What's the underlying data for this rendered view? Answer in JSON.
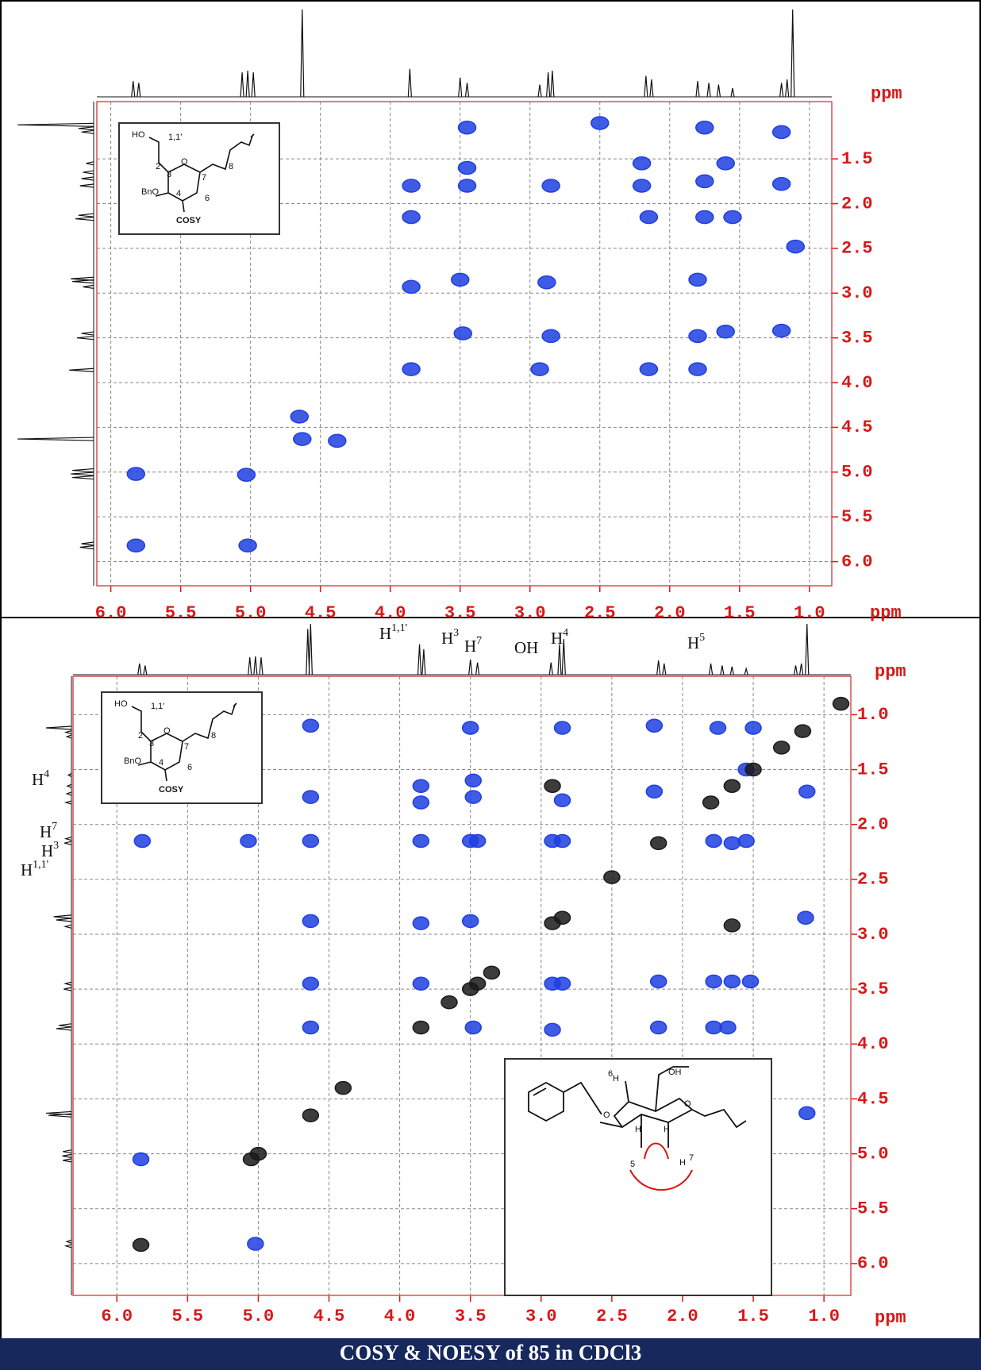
{
  "chart_data": [
    {
      "type": "scatter",
      "x_label": "ppm",
      "y_label": "ppm",
      "grid": true,
      "xlim": [
        6.1,
        0.84
      ],
      "ylim": [
        6.27,
        0.86
      ],
      "xticks": [
        {
          "value": 6.0,
          "label": "6.0"
        },
        {
          "value": 5.5,
          "label": "5.5"
        },
        {
          "value": 5.0,
          "label": "5.0"
        },
        {
          "value": 4.5,
          "label": "4.5"
        },
        {
          "value": 4.0,
          "label": "4.0"
        },
        {
          "value": 3.5,
          "label": "3.5"
        },
        {
          "value": 3.0,
          "label": "3.0"
        },
        {
          "value": 2.5,
          "label": "2.5"
        },
        {
          "value": 2.0,
          "label": "2.0"
        },
        {
          "value": 1.5,
          "label": "1.5"
        },
        {
          "value": 1.0,
          "label": "1.0"
        }
      ],
      "yticks": [
        {
          "value": 1.5,
          "label": "1.5"
        },
        {
          "value": 2.0,
          "label": "2.0"
        },
        {
          "value": 2.5,
          "label": "2.5"
        },
        {
          "value": 3.0,
          "label": "3.0"
        },
        {
          "value": 3.5,
          "label": "3.5"
        },
        {
          "value": 4.0,
          "label": "4.0"
        },
        {
          "value": 4.5,
          "label": "4.5"
        },
        {
          "value": 5.0,
          "label": "5.0"
        },
        {
          "value": 5.5,
          "label": "5.5"
        },
        {
          "value": 6.0,
          "label": "6.0"
        }
      ],
      "series": [
        {
          "color": "#1f3fe0",
          "x": [
            3.45,
            2.5,
            1.75,
            1.2,
            3.45,
            1.6,
            1.75,
            1.2,
            3.85,
            3.45,
            2.85,
            2.2,
            2.2,
            3.85,
            2.15,
            1.75,
            1.55,
            3.85,
            3.5,
            2.88,
            1.8,
            3.48,
            2.85,
            1.8,
            1.6,
            1.2,
            3.85,
            2.93,
            2.15,
            1.8,
            4.63,
            4.65,
            4.38,
            5.82,
            5.03,
            5.82,
            5.02,
            1.1
          ],
          "values": [
            1.15,
            1.1,
            1.15,
            1.2,
            1.6,
            1.55,
            1.75,
            1.78,
            1.8,
            1.8,
            1.8,
            1.8,
            1.55,
            2.15,
            2.15,
            2.15,
            2.15,
            2.93,
            2.85,
            2.88,
            2.85,
            3.45,
            3.48,
            3.48,
            3.43,
            3.42,
            3.85,
            3.85,
            3.85,
            3.85,
            4.63,
            4.38,
            4.65,
            5.02,
            5.03,
            5.82,
            5.82,
            2.48
          ]
        }
      ],
      "projection": {
        "x": [
          5.84,
          5.8,
          5.06,
          5.02,
          4.98,
          4.63,
          3.86,
          3.5,
          3.45,
          2.93,
          2.87,
          2.84,
          2.17,
          2.13,
          1.8,
          1.72,
          1.65,
          1.55,
          1.2,
          1.16,
          1.12
        ],
        "values": [
          18,
          16,
          28,
          30,
          28,
          100,
          32,
          22,
          16,
          14,
          28,
          30,
          24,
          20,
          18,
          16,
          14,
          10,
          16,
          20,
          100
        ]
      },
      "inset": {
        "labels": [
          "HO",
          "1,1'",
          "2",
          "3",
          "O",
          "7",
          "8",
          "BnO",
          "4",
          "6",
          "COSY"
        ]
      }
    },
    {
      "type": "scatter",
      "x_label": "ppm",
      "y_label": "ppm",
      "grid": true,
      "xlim": [
        6.31,
        0.81
      ],
      "ylim": [
        6.29,
        0.65
      ],
      "xticks": [
        {
          "value": 6.0,
          "label": "6.0"
        },
        {
          "value": 5.5,
          "label": "5.5"
        },
        {
          "value": 5.0,
          "label": "5.0"
        },
        {
          "value": 4.5,
          "label": "4.5"
        },
        {
          "value": 4.0,
          "label": "4.0"
        },
        {
          "value": 3.5,
          "label": "3.5"
        },
        {
          "value": 3.0,
          "label": "3.0"
        },
        {
          "value": 2.5,
          "label": "2.5"
        },
        {
          "value": 2.0,
          "label": "2.0"
        },
        {
          "value": 1.5,
          "label": "1.5"
        },
        {
          "value": 1.0,
          "label": "1.0"
        }
      ],
      "yticks": [
        {
          "value": 1.0,
          "label": "1.0"
        },
        {
          "value": 1.5,
          "label": "1.5"
        },
        {
          "value": 2.0,
          "label": "2.0"
        },
        {
          "value": 2.5,
          "label": "2.5"
        },
        {
          "value": 3.0,
          "label": "3.0"
        },
        {
          "value": 3.5,
          "label": "3.5"
        },
        {
          "value": 4.0,
          "label": "4.0"
        },
        {
          "value": 4.5,
          "label": "4.5"
        },
        {
          "value": 5.0,
          "label": "5.0"
        },
        {
          "value": 5.5,
          "label": "5.5"
        },
        {
          "value": 6.0,
          "label": "6.0"
        }
      ],
      "series": [
        {
          "color": "#1f3fe0",
          "x": [
            4.63,
            3.5,
            2.85,
            2.2,
            1.75,
            1.5,
            3.48,
            4.63,
            3.85,
            3.85,
            3.48,
            2.85,
            2.2,
            1.55,
            1.12,
            5.82,
            5.07,
            4.63,
            3.85,
            3.5,
            3.45,
            2.92,
            2.85,
            1.78,
            1.65,
            1.55,
            4.63,
            3.85,
            3.5,
            1.13,
            4.63,
            3.85,
            2.92,
            2.85,
            2.17,
            1.78,
            1.65,
            1.52,
            4.63,
            3.48,
            2.92,
            2.17,
            1.78,
            1.68,
            2.85,
            2.17,
            1.78,
            1.12,
            5.83,
            5.02
          ],
          "values": [
            1.1,
            1.12,
            1.12,
            1.1,
            1.12,
            1.12,
            1.6,
            1.75,
            1.65,
            1.8,
            1.75,
            1.78,
            1.7,
            1.5,
            1.7,
            2.15,
            2.15,
            2.15,
            2.15,
            2.15,
            2.15,
            2.15,
            2.15,
            2.15,
            2.17,
            2.15,
            2.88,
            2.9,
            2.88,
            2.85,
            3.45,
            3.45,
            3.45,
            3.45,
            3.43,
            3.43,
            3.43,
            3.43,
            3.85,
            3.85,
            3.87,
            3.85,
            3.85,
            3.85,
            4.63,
            4.63,
            4.63,
            4.63,
            5.05,
            5.82
          ]
        },
        {
          "color": "#1a1a1a",
          "x": [
            2.92,
            1.15,
            1.3,
            1.5,
            1.65,
            1.8,
            2.17,
            2.5,
            2.92,
            2.85,
            1.65,
            3.35,
            3.45,
            3.5,
            3.65,
            3.85,
            4.4,
            4.63,
            5.05,
            5.0,
            5.83,
            0.88
          ],
          "values": [
            1.65,
            1.15,
            1.3,
            1.5,
            1.65,
            1.8,
            2.17,
            2.48,
            2.9,
            2.85,
            2.92,
            3.35,
            3.45,
            3.5,
            3.62,
            3.85,
            4.4,
            4.65,
            5.05,
            5.0,
            5.83,
            0.9
          ]
        }
      ],
      "projection": {
        "x": [
          5.84,
          5.8,
          5.06,
          5.02,
          4.98,
          4.65,
          4.63,
          3.86,
          3.83,
          3.5,
          3.45,
          2.93,
          2.87,
          2.84,
          2.17,
          2.13,
          1.8,
          1.72,
          1.65,
          1.55,
          1.2,
          1.16,
          1.12
        ],
        "values": [
          22,
          18,
          34,
          36,
          34,
          90,
          100,
          60,
          50,
          30,
          24,
          24,
          60,
          70,
          28,
          22,
          22,
          18,
          16,
          12,
          18,
          22,
          100
        ]
      },
      "inset": {
        "labels": [
          "HO",
          "1,1'",
          "2",
          "3",
          "O",
          "7",
          "8",
          "BnO",
          "4",
          "6",
          "COSY"
        ]
      },
      "conformer": {
        "labels": [
          "H",
          "6",
          "OH",
          "O",
          "O",
          "H",
          "H",
          "5",
          "H",
          "7"
        ]
      },
      "annotations": [
        {
          "text": "H",
          "sup": "1,1'"
        },
        {
          "text": "H",
          "sup": "3"
        },
        {
          "text": "H",
          "sup": "7"
        },
        {
          "text": "OH"
        },
        {
          "text": "H",
          "sup": "4"
        },
        {
          "text": "H",
          "sup": "5"
        },
        {
          "text": "H",
          "sup": "4"
        },
        {
          "text": "H",
          "sup": "7"
        },
        {
          "text": "H",
          "sup": "3"
        },
        {
          "text": "H",
          "sup": "1,1'"
        }
      ]
    }
  ],
  "caption": "COSY & NOESY of 85 in CDCl3"
}
